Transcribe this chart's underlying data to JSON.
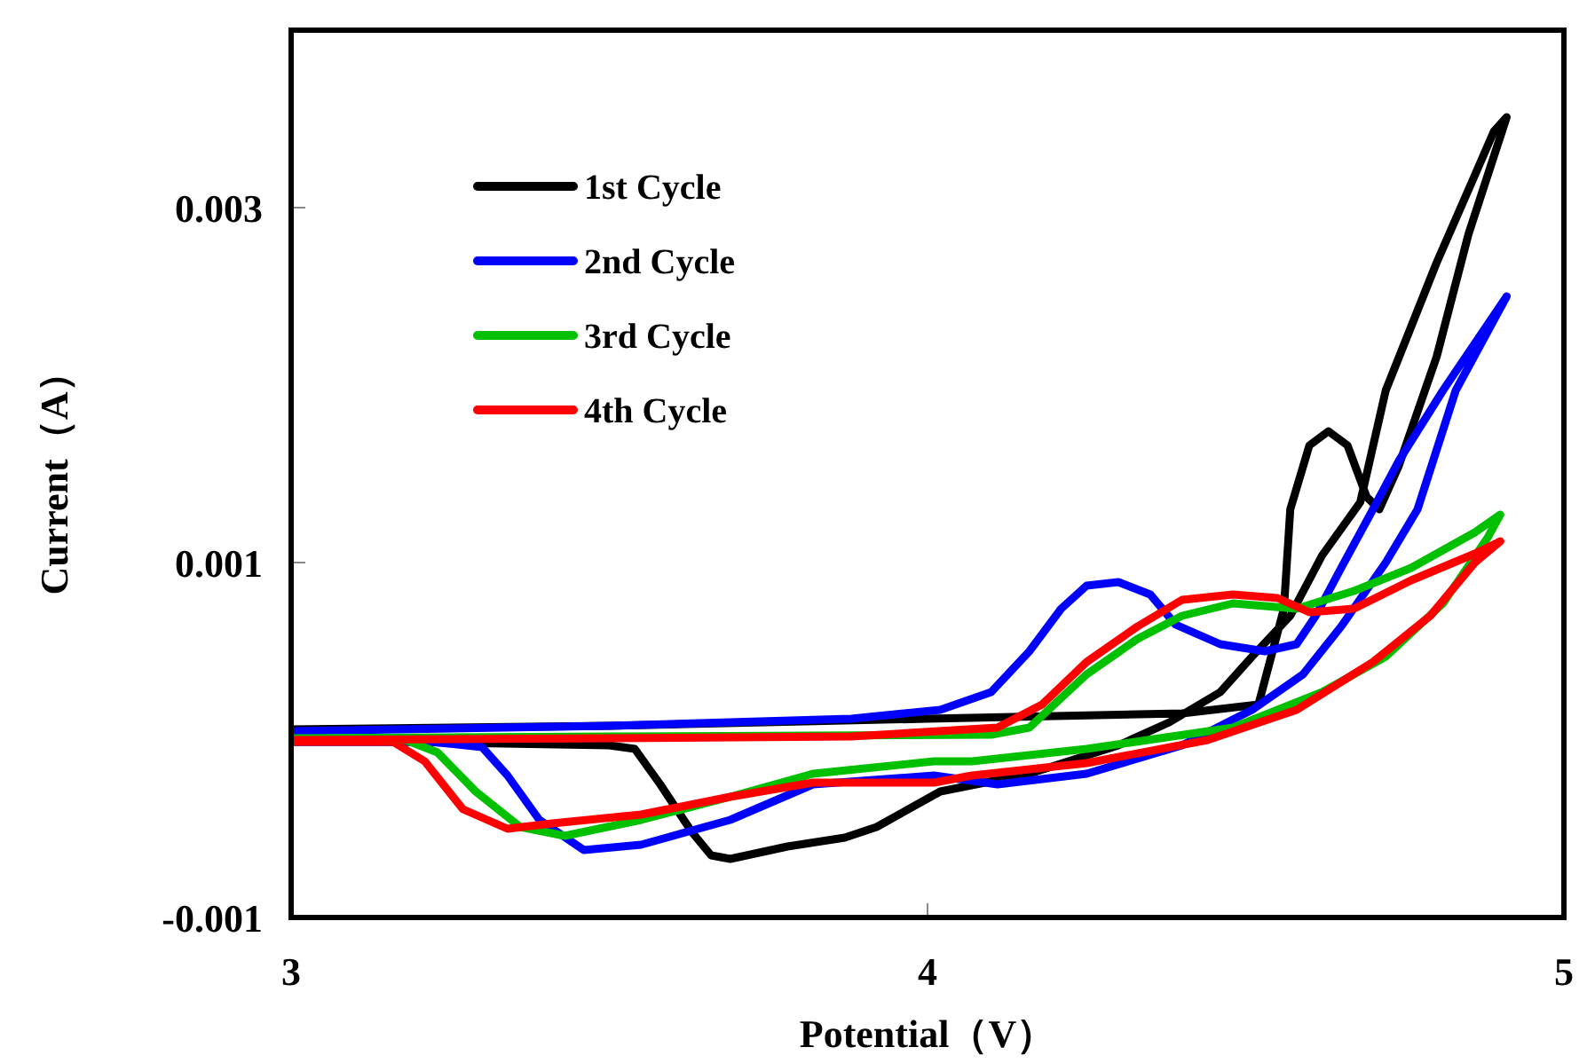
{
  "chart_data": {
    "type": "line",
    "xlabel": "Potential（V）",
    "ylabel": "Current（A）",
    "xlim": [
      3,
      5
    ],
    "xticks": [
      3,
      4,
      5
    ],
    "ylim": [
      -0.001,
      0.004
    ],
    "yticks": [
      -0.001,
      0.001,
      0.003
    ],
    "grid": false,
    "legend": "top left",
    "marker": "none",
    "line_style": "solid",
    "series": [
      {
        "name": "1st Cycle",
        "color": "#000000",
        "x": [
          3.0,
          3.5,
          4.0,
          4.4,
          4.52,
          4.56,
          4.57,
          4.6,
          4.63,
          4.66,
          4.69,
          4.71,
          4.74,
          4.8,
          4.85,
          4.91,
          4.89,
          4.85,
          4.8,
          4.76,
          4.72,
          4.68,
          4.62,
          4.57,
          4.51,
          4.46,
          4.38,
          4.3,
          4.16,
          4.02,
          3.92,
          3.87,
          3.78,
          3.69,
          3.66,
          3.63,
          3.58,
          3.54,
          3.5,
          3.18,
          3.0
        ],
        "values": [
          6e-05,
          8e-05,
          0.00012,
          0.00015,
          0.0002,
          0.00074,
          0.0013,
          0.00166,
          0.00174,
          0.00166,
          0.00137,
          0.0013,
          0.00154,
          0.00216,
          0.00285,
          0.00351,
          0.00343,
          0.0031,
          0.00269,
          0.00233,
          0.00197,
          0.00134,
          0.00104,
          0.0007,
          0.00047,
          0.00027,
          0.0001,
          -3e-05,
          -0.00019,
          -0.00029,
          -0.00049,
          -0.00055,
          -0.0006,
          -0.00067,
          -0.00065,
          -0.00052,
          -0.00025,
          -5e-05,
          -3e-05,
          -1e-05,
          -1e-05
        ]
      },
      {
        "name": "2nd Cycle",
        "color": "#0000ff",
        "x": [
          3.0,
          3.5,
          3.88,
          4.02,
          4.1,
          4.16,
          4.21,
          4.25,
          4.3,
          4.35,
          4.39,
          4.46,
          4.53,
          4.58,
          4.61,
          4.65,
          4.7,
          4.74,
          4.81,
          4.91,
          4.83,
          4.77,
          4.72,
          4.65,
          4.59,
          4.51,
          4.4,
          4.25,
          4.11,
          4.01,
          3.82,
          3.69,
          3.55,
          3.46,
          3.39,
          3.34,
          3.3,
          3.22,
          3.0
        ],
        "values": [
          5e-05,
          8e-05,
          0.00012,
          0.00017,
          0.00027,
          0.0005,
          0.00074,
          0.00087,
          0.00089,
          0.00082,
          0.00065,
          0.00054,
          0.0005,
          0.00054,
          0.0007,
          0.00097,
          0.0013,
          0.00157,
          0.00197,
          0.0025,
          0.00197,
          0.0013,
          0.001,
          0.00064,
          0.00037,
          0.00017,
          -3e-05,
          -0.00019,
          -0.00025,
          -0.0002,
          -0.00025,
          -0.00045,
          -0.00059,
          -0.00062,
          -0.00045,
          -0.0002,
          -4e-05,
          -1e-05,
          -1e-05
        ]
      },
      {
        "name": "3rd Cycle",
        "color": "#00c000",
        "x": [
          3.0,
          3.5,
          4.1,
          4.16,
          4.25,
          4.33,
          4.4,
          4.48,
          4.58,
          4.67,
          4.76,
          4.86,
          4.9,
          4.88,
          4.81,
          4.72,
          4.62,
          4.48,
          4.25,
          4.07,
          4.01,
          3.82,
          3.69,
          3.55,
          3.43,
          3.36,
          3.29,
          3.23,
          3.18,
          3.0
        ],
        "values": [
          1e-05,
          2e-05,
          3e-05,
          7e-05,
          0.00037,
          0.00057,
          0.0007,
          0.00077,
          0.00074,
          0.00084,
          0.00097,
          0.00117,
          0.00127,
          0.00114,
          0.00077,
          0.00047,
          0.00027,
          7e-05,
          -5e-05,
          -0.00012,
          -0.00012,
          -0.00019,
          -0.00032,
          -0.00045,
          -0.00054,
          -0.00049,
          -0.00029,
          -7e-05,
          0.0,
          0.0
        ]
      },
      {
        "name": "4th Cycle",
        "color": "#ff0000",
        "x": [
          3.0,
          3.5,
          3.88,
          4.11,
          4.18,
          4.25,
          4.33,
          4.4,
          4.48,
          4.55,
          4.6,
          4.67,
          4.76,
          4.86,
          4.9,
          4.86,
          4.79,
          4.7,
          4.58,
          4.44,
          4.25,
          4.07,
          4.01,
          3.82,
          3.69,
          3.55,
          3.41,
          3.34,
          3.27,
          3.21,
          3.16,
          3.0
        ],
        "values": [
          0.0,
          1e-05,
          2e-05,
          7e-05,
          0.0002,
          0.00044,
          0.00064,
          0.00079,
          0.00082,
          0.0008,
          0.00072,
          0.00074,
          0.0009,
          0.00105,
          0.00112,
          0.001,
          0.0007,
          0.00044,
          0.00017,
          0.0,
          -0.00013,
          -0.0002,
          -0.00024,
          -0.00024,
          -0.00032,
          -0.00042,
          -0.00047,
          -0.0005,
          -0.00039,
          -0.00012,
          -1e-05,
          -1e-05
        ]
      }
    ]
  }
}
